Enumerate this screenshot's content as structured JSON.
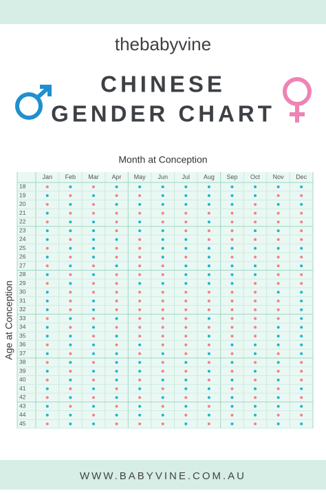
{
  "header": {
    "logo": "thebabyvine",
    "title_lines": [
      "CHINESE",
      "GENDER CHART"
    ]
  },
  "table": {
    "x_label": "Month at Conception",
    "y_label": "Age at Conception",
    "dot_colors": {
      "B": "#1fb3cf",
      "G": "#f0808e"
    },
    "months": [
      "Jan",
      "Feb",
      "Mar",
      "Apr",
      "May",
      "Jun",
      "Jul",
      "Aug",
      "Sep",
      "Oct",
      "Nov",
      "Dec"
    ],
    "rows": [
      {
        "age": "18",
        "dots": "GBGBBBBBBBBB"
      },
      {
        "age": "19",
        "dots": "BGBGGBBBBBGG"
      },
      {
        "age": "20",
        "dots": "GBGBBBBBBGBB"
      },
      {
        "age": "21",
        "dots": "BGGGGGGGGGGG"
      },
      {
        "age": "22",
        "dots": "GBBGBGGBGGGG"
      },
      {
        "age": "23",
        "dots": "BBBGBBGGGBBG"
      },
      {
        "age": "24",
        "dots": "BGBBGBBGGGGG"
      },
      {
        "age": "25",
        "dots": "GBBGGBBBBBBB"
      },
      {
        "age": "26",
        "dots": "BGBGGBGBGGGG"
      },
      {
        "age": "27",
        "dots": "GBGBGGBBBBGB"
      },
      {
        "age": "28",
        "dots": "BGBGGGBBBBGG"
      },
      {
        "age": "29",
        "dots": "GBGGBBBBBGGG"
      },
      {
        "age": "30",
        "dots": "BGGGGGGGGGBB"
      },
      {
        "age": "31",
        "dots": "BGBGGGGGGGGB"
      },
      {
        "age": "32",
        "dots": "BGBGGGGGGGGB"
      },
      {
        "age": "33",
        "dots": "GBGBGGGBGGGB"
      },
      {
        "age": "34",
        "dots": "BGBGGGGGGGBB"
      },
      {
        "age": "35",
        "dots": "BBGBGGGBGGBB"
      },
      {
        "age": "36",
        "dots": "GBBGBGGGBBBB"
      },
      {
        "age": "37",
        "dots": "BGBBGBGBGBGB"
      },
      {
        "age": "38",
        "dots": "GBGBBGBGBGBG"
      },
      {
        "age": "39",
        "dots": "BGBBBGGBGBGG"
      },
      {
        "age": "40",
        "dots": "GBGBGBBGBGBG"
      },
      {
        "age": "41",
        "dots": "BGBGBGBBGBGB"
      },
      {
        "age": "42",
        "dots": "GBGBGBGBBGBG"
      },
      {
        "age": "43",
        "dots": "BGBGBGBGBBBB"
      },
      {
        "age": "44",
        "dots": "BBGBBBGBGBGG"
      },
      {
        "age": "45",
        "dots": "GBBGGGBGBGBB"
      }
    ]
  },
  "footer": {
    "url": "WWW.BABYVINE.COM.AU"
  }
}
